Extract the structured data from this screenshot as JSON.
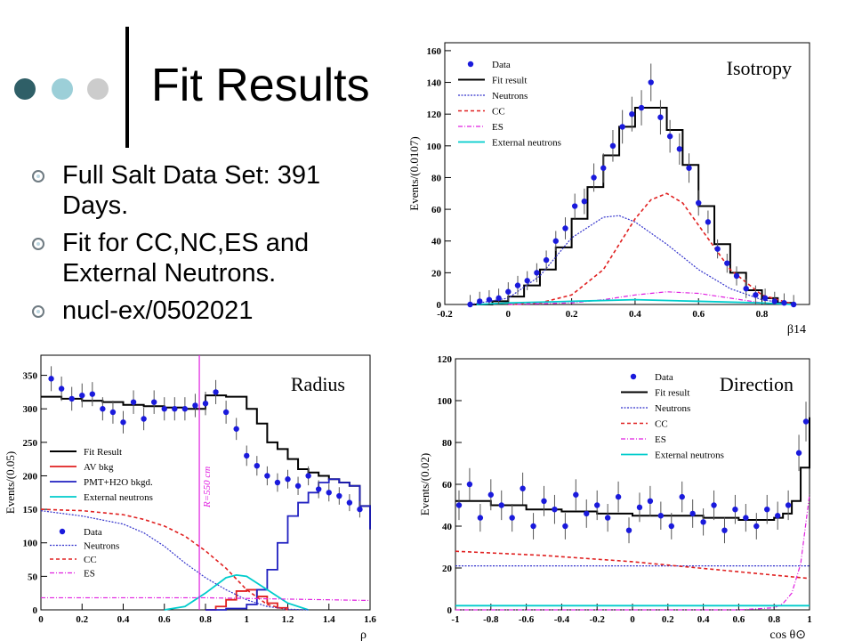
{
  "slide": {
    "title": "Fit Results",
    "bullets": [
      "Full Salt Data Set: 391 Days.",
      "Fit for CC,NC,ES and External Neutrons.",
      "nucl-ex/0502021"
    ],
    "dots": [
      "#2f5f67",
      "#9ccfd8",
      "#cccccc"
    ]
  },
  "chart_data": [
    {
      "type": "line",
      "panel_label": "Isotropy",
      "ylabel": "Events/(0.0107)",
      "xlabel": "β14",
      "xlim": [
        -0.2,
        0.95
      ],
      "ylim": [
        0,
        165
      ],
      "xticks": [
        -0.2,
        0,
        0.2,
        0.4,
        0.6,
        0.8
      ],
      "yticks": [
        0,
        20,
        40,
        60,
        80,
        100,
        120,
        140,
        160
      ],
      "legend": [
        "Data",
        "Fit result",
        "Neutrons",
        "CC",
        "ES",
        "External neutrons"
      ],
      "legend_position": "top-left",
      "series": [
        {
          "name": "Fit result",
          "x": [
            -0.12,
            -0.05,
            0.0,
            0.05,
            0.1,
            0.15,
            0.2,
            0.25,
            0.3,
            0.35,
            0.4,
            0.45,
            0.5,
            0.55,
            0.6,
            0.65,
            0.7,
            0.75,
            0.8,
            0.85,
            0.9
          ],
          "y": [
            0,
            2,
            5,
            12,
            22,
            36,
            54,
            74,
            94,
            112,
            124,
            124,
            110,
            88,
            62,
            38,
            20,
            9,
            4,
            1,
            0
          ]
        },
        {
          "name": "Neutrons",
          "x": [
            -0.12,
            0.0,
            0.1,
            0.2,
            0.3,
            0.35,
            0.4,
            0.5,
            0.6,
            0.7,
            0.8,
            0.9
          ],
          "y": [
            0,
            4,
            18,
            42,
            55,
            56,
            52,
            38,
            22,
            10,
            3,
            0
          ]
        },
        {
          "name": "CC",
          "x": [
            0.0,
            0.1,
            0.2,
            0.3,
            0.35,
            0.4,
            0.45,
            0.5,
            0.55,
            0.6,
            0.7,
            0.8,
            0.9
          ],
          "y": [
            0,
            1,
            6,
            22,
            38,
            54,
            66,
            70,
            64,
            50,
            22,
            6,
            0
          ]
        },
        {
          "name": "ES",
          "x": [
            0.0,
            0.2,
            0.3,
            0.4,
            0.5,
            0.6,
            0.7,
            0.8,
            0.9
          ],
          "y": [
            0,
            1,
            3,
            6,
            8,
            7,
            4,
            1,
            0
          ]
        },
        {
          "name": "External neutrons",
          "x": [
            -0.1,
            0.0,
            0.2,
            0.4,
            0.6,
            0.8,
            0.9
          ],
          "y": [
            0,
            1,
            2,
            3,
            2,
            1,
            0
          ]
        },
        {
          "name": "Data",
          "x": [
            -0.12,
            -0.09,
            -0.06,
            -0.03,
            0.0,
            0.03,
            0.06,
            0.09,
            0.12,
            0.15,
            0.18,
            0.21,
            0.24,
            0.27,
            0.3,
            0.33,
            0.36,
            0.39,
            0.42,
            0.45,
            0.48,
            0.51,
            0.54,
            0.57,
            0.6,
            0.63,
            0.66,
            0.69,
            0.72,
            0.75,
            0.78,
            0.81,
            0.84,
            0.87,
            0.9
          ],
          "y": [
            0,
            2,
            3,
            4,
            8,
            12,
            15,
            20,
            28,
            40,
            48,
            62,
            65,
            80,
            86,
            100,
            112,
            120,
            124,
            140,
            118,
            106,
            98,
            86,
            64,
            52,
            35,
            26,
            18,
            10,
            6,
            4,
            2,
            1,
            0
          ]
        }
      ]
    },
    {
      "type": "line",
      "panel_label": "Radius",
      "ylabel": "Events/(0.05)",
      "xlabel": "ρ",
      "xlim": [
        0,
        1.6
      ],
      "ylim": [
        0,
        380
      ],
      "xticks": [
        0,
        0.2,
        0.4,
        0.6,
        0.8,
        1,
        1.2,
        1.4,
        1.6
      ],
      "yticks": [
        0,
        50,
        100,
        150,
        200,
        250,
        300,
        350
      ],
      "annotation": "R=550 cm",
      "annotation_x": 0.77,
      "legend_top": [
        "Fit Result",
        "AV bkg",
        "PMT+H2O bkgd.",
        "External neutrons"
      ],
      "legend_bottom": [
        "Data",
        "Neutrons",
        "CC",
        "ES"
      ],
      "series": [
        {
          "name": "Fit Result",
          "x": [
            0,
            0.1,
            0.2,
            0.3,
            0.4,
            0.5,
            0.6,
            0.7,
            0.8,
            0.9,
            1.0,
            1.05,
            1.1,
            1.15,
            1.2,
            1.25,
            1.3,
            1.35,
            1.4,
            1.45,
            1.5,
            1.55,
            1.6
          ],
          "y": [
            318,
            315,
            312,
            310,
            306,
            304,
            302,
            300,
            320,
            318,
            300,
            278,
            250,
            240,
            225,
            210,
            205,
            200,
            195,
            190,
            185,
            155,
            120
          ]
        },
        {
          "name": "AV bkg",
          "x": [
            0.8,
            0.85,
            0.9,
            0.95,
            1.0,
            1.05,
            1.1,
            1.15,
            1.2
          ],
          "y": [
            0,
            5,
            15,
            28,
            30,
            20,
            10,
            3,
            0
          ]
        },
        {
          "name": "PMT+H2O bkgd.",
          "x": [
            0.8,
            0.9,
            1.0,
            1.05,
            1.1,
            1.15,
            1.2,
            1.25,
            1.3,
            1.35,
            1.4,
            1.45,
            1.5,
            1.55,
            1.6
          ],
          "y": [
            0,
            2,
            8,
            30,
            60,
            100,
            140,
            160,
            175,
            190,
            195,
            190,
            185,
            155,
            120
          ]
        },
        {
          "name": "External neutrons",
          "x": [
            0.6,
            0.7,
            0.8,
            0.9,
            0.95,
            1.0,
            1.1,
            1.2,
            1.3
          ],
          "y": [
            0,
            5,
            25,
            48,
            52,
            50,
            30,
            10,
            0
          ]
        },
        {
          "name": "Neutrons",
          "x": [
            0,
            0.2,
            0.4,
            0.5,
            0.6,
            0.7,
            0.8,
            0.9,
            1.0,
            1.1,
            1.2,
            1.3
          ],
          "y": [
            148,
            140,
            128,
            115,
            95,
            70,
            48,
            30,
            15,
            5,
            1,
            0
          ]
        },
        {
          "name": "CC",
          "x": [
            0,
            0.2,
            0.4,
            0.5,
            0.6,
            0.7,
            0.8,
            0.9,
            1.0,
            1.1,
            1.2
          ],
          "y": [
            150,
            148,
            142,
            135,
            125,
            110,
            88,
            62,
            30,
            8,
            0
          ]
        },
        {
          "name": "ES",
          "x": [
            0,
            0.4,
            0.8,
            1.0,
            1.2,
            1.4,
            1.6
          ],
          "y": [
            18,
            18,
            18,
            17,
            16,
            15,
            14
          ]
        },
        {
          "name": "Data",
          "x": [
            0.05,
            0.1,
            0.15,
            0.2,
            0.25,
            0.3,
            0.35,
            0.4,
            0.45,
            0.5,
            0.55,
            0.6,
            0.65,
            0.7,
            0.75,
            0.8,
            0.85,
            0.9,
            0.95,
            1.0,
            1.05,
            1.1,
            1.15,
            1.2,
            1.25,
            1.3,
            1.35,
            1.4,
            1.45,
            1.5,
            1.55
          ],
          "y": [
            345,
            330,
            315,
            320,
            322,
            300,
            295,
            280,
            310,
            285,
            310,
            300,
            300,
            300,
            305,
            308,
            325,
            295,
            270,
            230,
            215,
            200,
            190,
            195,
            185,
            200,
            180,
            175,
            170,
            160,
            150
          ]
        }
      ]
    },
    {
      "type": "line",
      "panel_label": "Direction",
      "ylabel": "Events/(0.02)",
      "xlabel": "cos θ⊙",
      "xlim": [
        -1,
        1
      ],
      "ylim": [
        0,
        120
      ],
      "xticks": [
        -1,
        -0.8,
        -0.6,
        -0.4,
        -0.2,
        0,
        0.2,
        0.4,
        0.6,
        0.8,
        1
      ],
      "yticks": [
        0,
        20,
        40,
        60,
        80,
        100,
        120
      ],
      "legend": [
        "Data",
        "Fit result",
        "Neutrons",
        "CC",
        "ES",
        "External neutrons"
      ],
      "legend_position": "top-right",
      "series": [
        {
          "name": "Fit result",
          "x": [
            -1,
            -0.8,
            -0.6,
            -0.4,
            -0.2,
            0,
            0.2,
            0.4,
            0.6,
            0.7,
            0.8,
            0.85,
            0.9,
            0.95,
            1.0
          ],
          "y": [
            52,
            50,
            48,
            47,
            46,
            45,
            45,
            44,
            43,
            43,
            44,
            46,
            52,
            68,
            92
          ]
        },
        {
          "name": "Neutrons",
          "x": [
            -1,
            -0.5,
            0,
            0.5,
            1.0
          ],
          "y": [
            21,
            21,
            21,
            21,
            21
          ]
        },
        {
          "name": "CC",
          "x": [
            -1,
            -0.5,
            0,
            0.5,
            1.0
          ],
          "y": [
            28,
            26,
            23,
            19,
            15
          ]
        },
        {
          "name": "ES",
          "x": [
            -1,
            0,
            0.6,
            0.8,
            0.85,
            0.9,
            0.95,
            1.0
          ],
          "y": [
            0,
            0,
            0,
            1,
            3,
            8,
            22,
            55
          ]
        },
        {
          "name": "External neutrons",
          "x": [
            -1,
            0,
            1
          ],
          "y": [
            2,
            2,
            2
          ]
        },
        {
          "name": "Data",
          "x": [
            -0.98,
            -0.92,
            -0.86,
            -0.8,
            -0.74,
            -0.68,
            -0.62,
            -0.56,
            -0.5,
            -0.44,
            -0.38,
            -0.32,
            -0.26,
            -0.2,
            -0.14,
            -0.08,
            -0.02,
            0.04,
            0.1,
            0.16,
            0.22,
            0.28,
            0.34,
            0.4,
            0.46,
            0.52,
            0.58,
            0.64,
            0.7,
            0.76,
            0.82,
            0.88,
            0.94,
            0.98
          ],
          "y": [
            50,
            60,
            44,
            55,
            50,
            44,
            58,
            40,
            52,
            48,
            40,
            55,
            46,
            50,
            44,
            54,
            38,
            49,
            52,
            45,
            40,
            54,
            46,
            42,
            50,
            38,
            48,
            44,
            40,
            48,
            45,
            50,
            75,
            90
          ]
        }
      ]
    }
  ]
}
